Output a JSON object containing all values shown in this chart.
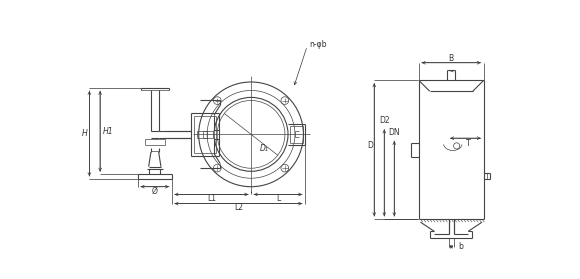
{
  "bg_color": "#ffffff",
  "line_color": "#444444",
  "dim_color": "#333333",
  "figsize": [
    5.8,
    2.79
  ],
  "dpi": 100,
  "labels": {
    "n_phi": "n-φb",
    "D1": "D₁",
    "H": "H",
    "H1": "H1",
    "phi": "Ø",
    "L1": "L1",
    "L": "L",
    "L2": "L2",
    "B": "B",
    "T": "T",
    "D": "D",
    "D2": "D2",
    "DN": "DN",
    "b": "b"
  }
}
